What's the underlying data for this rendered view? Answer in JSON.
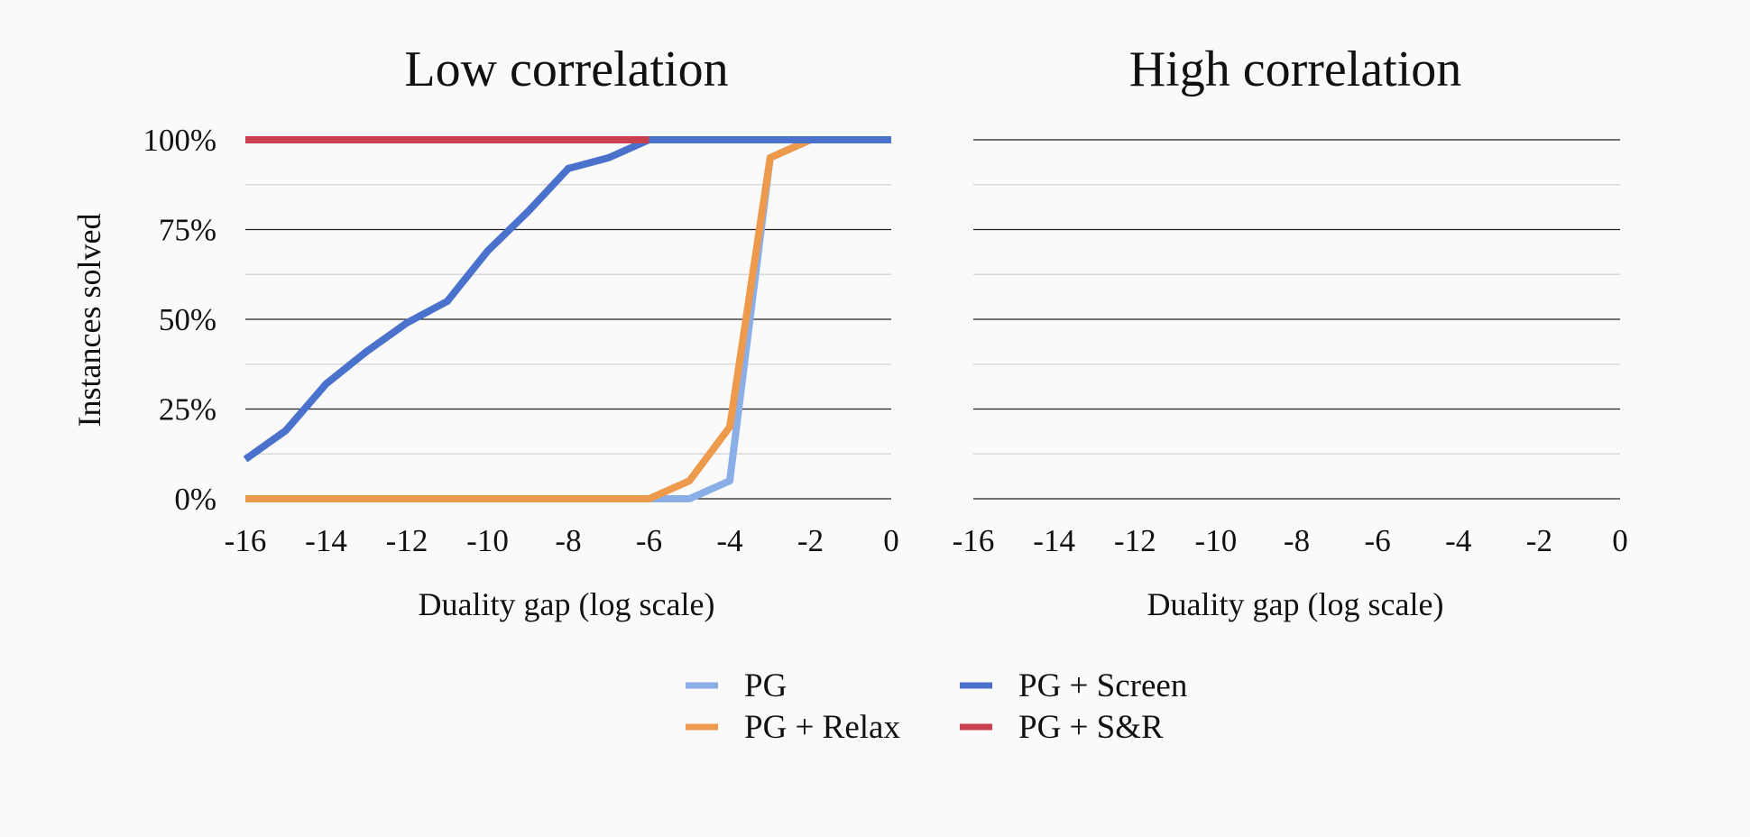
{
  "chart_data": [
    {
      "type": "line",
      "title": "Low correlation",
      "xlabel": "Duality gap (log scale)",
      "ylabel": "Instances solved",
      "x_ticks": [
        "-16",
        "-14",
        "-12",
        "-10",
        "-8",
        "-6",
        "-4",
        "-2",
        "0"
      ],
      "y_ticks": [
        "0%",
        "25%",
        "50%",
        "75%",
        "100%"
      ],
      "xlim": [
        -16,
        0
      ],
      "ylim": [
        0,
        100
      ],
      "grid": true,
      "series": [
        {
          "name": "PG",
          "color": "#8AAEE6",
          "x": [
            -16,
            -15,
            -14,
            -13,
            -12,
            -11,
            -10,
            -9,
            -8,
            -7,
            -6,
            -5,
            -4,
            -3,
            -2,
            -1,
            0
          ],
          "y": [
            0,
            0,
            0,
            0,
            0,
            0,
            0,
            0,
            0,
            0,
            0,
            0,
            5,
            95,
            100,
            100,
            100
          ]
        },
        {
          "name": "PG + Relax",
          "color": "#EE9A4D",
          "x": [
            -16,
            -15,
            -14,
            -13,
            -12,
            -11,
            -10,
            -9,
            -8,
            -7,
            -6,
            -5,
            -4,
            -3,
            -2,
            -1,
            0
          ],
          "y": [
            0,
            0,
            0,
            0,
            0,
            0,
            0,
            0,
            0,
            0,
            0,
            5,
            20,
            95,
            100,
            100,
            100
          ]
        },
        {
          "name": "PG + Screen",
          "color": "#4A72CC",
          "x": [
            -16,
            -15,
            -14,
            -13,
            -12,
            -11,
            -10,
            -9,
            -8,
            -7,
            -6,
            -5,
            -4,
            -3,
            -2,
            -1,
            0
          ],
          "y": [
            11,
            19,
            32,
            41,
            49,
            55,
            69,
            80,
            92,
            95,
            100,
            100,
            100,
            100,
            100,
            100,
            100
          ]
        },
        {
          "name": "PG + S&R",
          "color": "#C9404F",
          "x": [
            -16,
            -15,
            -14,
            -13,
            -12,
            -11,
            -10,
            -9,
            -8,
            -7,
            -6
          ],
          "y": [
            100,
            100,
            100,
            100,
            100,
            100,
            100,
            100,
            100,
            100,
            100
          ]
        }
      ]
    },
    {
      "type": "line",
      "title": "High correlation",
      "xlabel": "Duality gap (log scale)",
      "ylabel": "",
      "x_ticks": [
        "-16",
        "-14",
        "-12",
        "-10",
        "-8",
        "-6",
        "-4",
        "-2",
        "0"
      ],
      "xlim": [
        -16,
        0
      ],
      "ylim": [
        0,
        100
      ],
      "grid": true,
      "series": []
    }
  ],
  "legend": {
    "placement": "bottom-center",
    "items": [
      {
        "label": "PG",
        "color": "#8AAEE6"
      },
      {
        "label": "PG + Screen",
        "color": "#4A72CC"
      },
      {
        "label": "PG + Relax",
        "color": "#EE9A4D"
      },
      {
        "label": "PG + S&R",
        "color": "#C9404F"
      }
    ]
  }
}
